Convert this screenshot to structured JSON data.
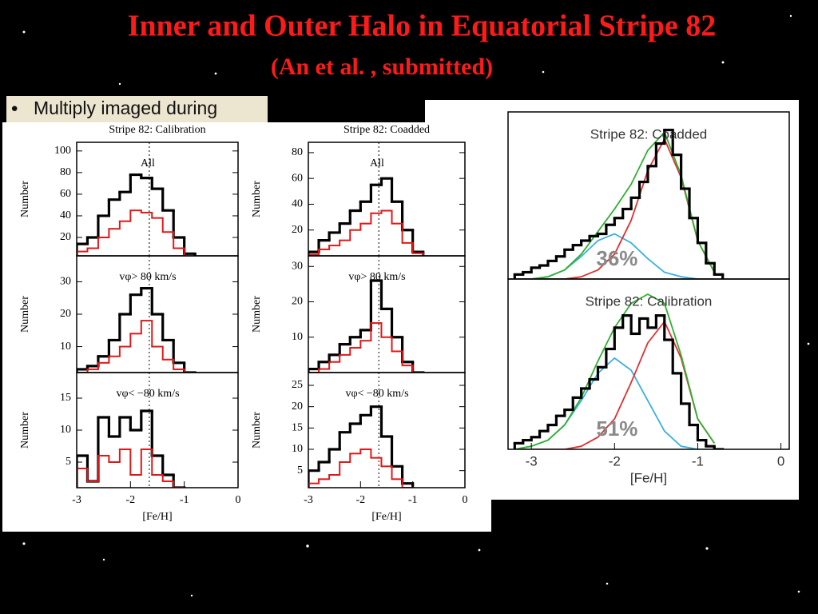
{
  "title": "Inner and Outer Halo in Equatorial Stripe 82",
  "subtitle": "(An et al. , submitted)",
  "bullet": "Multiply imaged during",
  "chart_data": [
    {
      "type": "histogram",
      "title": "Stripe 82: Calibration",
      "annotation": "All",
      "ylabel": "Number",
      "bins": [
        -3.0,
        -2.8,
        -2.6,
        -2.4,
        -2.2,
        -2.0,
        -1.8,
        -1.6,
        -1.4,
        -1.2,
        -1.0,
        -0.8
      ],
      "series": [
        {
          "color": "#000000",
          "values": [
            14,
            20,
            40,
            55,
            62,
            78,
            75,
            65,
            45,
            20,
            5
          ]
        },
        {
          "color": "#e01818",
          "values": [
            7,
            10,
            20,
            28,
            35,
            45,
            43,
            38,
            25,
            10,
            2
          ]
        }
      ],
      "vline": -1.65,
      "xlim": [
        -3,
        0
      ],
      "ylim": [
        3,
        108
      ],
      "yticks": [
        20,
        40,
        60,
        80,
        100
      ]
    },
    {
      "type": "histogram",
      "annotation": "vφ> 80 km/s",
      "ylabel": "Number",
      "bins": [
        -3.0,
        -2.8,
        -2.6,
        -2.4,
        -2.2,
        -2.0,
        -1.8,
        -1.6,
        -1.4,
        -1.2,
        -1.0,
        -0.8
      ],
      "series": [
        {
          "color": "#000000",
          "values": [
            3,
            4,
            7,
            12,
            20,
            26,
            28,
            20,
            12,
            5,
            2
          ]
        },
        {
          "color": "#e01818",
          "values": [
            2,
            3,
            5,
            7,
            10,
            14,
            18,
            10,
            6,
            3,
            1
          ]
        }
      ],
      "vline": -1.65,
      "xlim": [
        -3,
        0
      ],
      "ylim": [
        2,
        38
      ],
      "yticks": [
        10,
        20,
        30
      ]
    },
    {
      "type": "histogram",
      "annotation": "vφ< −80 km/s",
      "ylabel": "Number",
      "xlabel": "[Fe/H]",
      "bins": [
        -3.0,
        -2.8,
        -2.6,
        -2.4,
        -2.2,
        -2.0,
        -1.8,
        -1.6,
        -1.4,
        -1.2,
        -1.0,
        -0.8
      ],
      "series": [
        {
          "color": "#000000",
          "values": [
            6,
            2,
            12,
            9,
            12,
            10,
            13,
            6,
            3,
            1,
            0
          ]
        },
        {
          "color": "#e01818",
          "values": [
            4,
            2,
            6,
            5,
            7,
            3,
            7,
            3,
            2,
            1,
            0
          ]
        }
      ],
      "vline": -1.65,
      "xlim": [
        -3,
        0
      ],
      "ylim": [
        1,
        19
      ],
      "yticks": [
        5,
        10,
        15
      ],
      "xticks": [
        -3,
        -2,
        -1,
        0
      ]
    },
    {
      "type": "histogram",
      "title": "Stripe 82: Coadded",
      "annotation": "All",
      "ylabel": "Number",
      "bins": [
        -3.0,
        -2.8,
        -2.6,
        -2.4,
        -2.2,
        -2.0,
        -1.8,
        -1.6,
        -1.4,
        -1.2,
        -1.0,
        -0.8
      ],
      "series": [
        {
          "color": "#000000",
          "values": [
            3,
            12,
            18,
            25,
            35,
            42,
            55,
            60,
            42,
            20,
            3
          ]
        },
        {
          "color": "#e01818",
          "values": [
            1,
            5,
            8,
            12,
            20,
            25,
            33,
            35,
            25,
            10,
            2
          ]
        }
      ],
      "vline": -1.65,
      "xlim": [
        -3,
        0
      ],
      "ylim": [
        0,
        88
      ],
      "yticks": [
        20,
        40,
        60,
        80
      ]
    },
    {
      "type": "histogram",
      "annotation": "vφ> 80 km/s",
      "ylabel": "Number",
      "bins": [
        -3.0,
        -2.8,
        -2.6,
        -2.4,
        -2.2,
        -2.0,
        -1.8,
        -1.6,
        -1.4,
        -1.2,
        -1.0,
        -0.8
      ],
      "series": [
        {
          "color": "#000000",
          "values": [
            1,
            3,
            5,
            8,
            10,
            12,
            26,
            18,
            10,
            3,
            0
          ]
        },
        {
          "color": "#e01818",
          "values": [
            0,
            1,
            3,
            5,
            7,
            9,
            14,
            10,
            6,
            2,
            0
          ]
        }
      ],
      "vline": -1.65,
      "xlim": [
        -3,
        0
      ],
      "ylim": [
        0,
        33
      ],
      "yticks": [
        10,
        20,
        30
      ]
    },
    {
      "type": "histogram",
      "annotation": "vφ< −80 km/s",
      "ylabel": "Number",
      "xlabel": "[Fe/H]",
      "bins": [
        -3.0,
        -2.8,
        -2.6,
        -2.4,
        -2.2,
        -2.0,
        -1.8,
        -1.6,
        -1.4,
        -1.2,
        -1.0,
        -0.8
      ],
      "series": [
        {
          "color": "#000000",
          "values": [
            5,
            7,
            10,
            14,
            16,
            18,
            20,
            13,
            6,
            2,
            0
          ]
        },
        {
          "color": "#e01818",
          "values": [
            2,
            3,
            4,
            7,
            9,
            10,
            8,
            6,
            3,
            1,
            0
          ]
        }
      ],
      "vline": -1.65,
      "xlim": [
        -3,
        0
      ],
      "ylim": [
        1,
        28
      ],
      "yticks": [
        5,
        10,
        15,
        20,
        25
      ],
      "xticks": [
        -3,
        -2,
        -1,
        0
      ]
    },
    {
      "type": "histogram",
      "title": "Stripe 82: Coadded",
      "percent_label": "36%",
      "bins": [
        -3.2,
        -3.1,
        -3.0,
        -2.9,
        -2.8,
        -2.7,
        -2.6,
        -2.5,
        -2.4,
        -2.3,
        -2.2,
        -2.1,
        -2.0,
        -1.9,
        -1.8,
        -1.7,
        -1.6,
        -1.5,
        -1.4,
        -1.3,
        -1.2,
        -1.1,
        -1.0,
        -0.9,
        -0.8,
        -0.7
      ],
      "series": [
        {
          "color": "#000000",
          "values": [
            2,
            3,
            5,
            6,
            8,
            10,
            13,
            15,
            17,
            19,
            20,
            24,
            27,
            31,
            36,
            43,
            50,
            60,
            66,
            55,
            40,
            27,
            16,
            7,
            2
          ]
        }
      ],
      "curve_x": [
        -3.2,
        -3.0,
        -2.8,
        -2.6,
        -2.4,
        -2.2,
        -2.0,
        -1.8,
        -1.6,
        -1.4,
        -1.2,
        -1.0,
        -0.8
      ],
      "curves": [
        {
          "color": "#3ab0e0",
          "values": [
            0,
            0,
            1,
            4,
            10,
            17,
            20,
            16,
            9,
            3,
            1,
            0,
            0
          ]
        },
        {
          "color": "#e03030",
          "values": [
            0,
            0,
            0,
            0,
            1,
            4,
            11,
            26,
            48,
            62,
            45,
            17,
            3
          ]
        },
        {
          "color": "#30b030",
          "values": [
            0,
            0,
            1,
            4,
            11,
            21,
            31,
            42,
            57,
            65,
            46,
            17,
            3
          ]
        }
      ],
      "xlim": [
        -3.28,
        0.1
      ],
      "ylim": [
        0,
        74
      ]
    },
    {
      "type": "histogram",
      "title": "Stripe 82: Calibration",
      "percent_label": "51%",
      "xlabel": "[Fe/H]",
      "bins": [
        -3.2,
        -3.1,
        -3.0,
        -2.9,
        -2.8,
        -2.7,
        -2.6,
        -2.5,
        -2.4,
        -2.3,
        -2.2,
        -2.1,
        -2.0,
        -1.9,
        -1.8,
        -1.7,
        -1.6,
        -1.5,
        -1.4,
        -1.3,
        -1.2,
        -1.1,
        -1.0,
        -0.9,
        -0.8,
        -0.7
      ],
      "series": [
        {
          "color": "#000000",
          "values": [
            2,
            3,
            4,
            6,
            8,
            11,
            13,
            17,
            20,
            23,
            27,
            33,
            40,
            44,
            38,
            43,
            40,
            44,
            36,
            25,
            15,
            8,
            3,
            1,
            0
          ]
        }
      ],
      "curve_x": [
        -3.2,
        -3.0,
        -2.8,
        -2.6,
        -2.4,
        -2.2,
        -2.0,
        -1.8,
        -1.6,
        -1.4,
        -1.2,
        -1.0,
        -0.8
      ],
      "curves": [
        {
          "color": "#3ab0e0",
          "values": [
            0,
            1,
            3,
            8,
            16,
            25,
            30,
            26,
            16,
            6,
            1,
            0,
            0
          ]
        },
        {
          "color": "#e03030",
          "values": [
            0,
            0,
            0,
            0,
            1,
            4,
            10,
            22,
            35,
            42,
            30,
            10,
            2
          ]
        },
        {
          "color": "#30b030",
          "values": [
            0,
            1,
            3,
            8,
            17,
            29,
            40,
            48,
            51,
            48,
            31,
            10,
            2
          ]
        }
      ],
      "xlim": [
        -3.28,
        0.1
      ],
      "ylim": [
        0,
        56
      ],
      "xticks": [
        -3,
        -2,
        -1,
        0
      ]
    }
  ]
}
